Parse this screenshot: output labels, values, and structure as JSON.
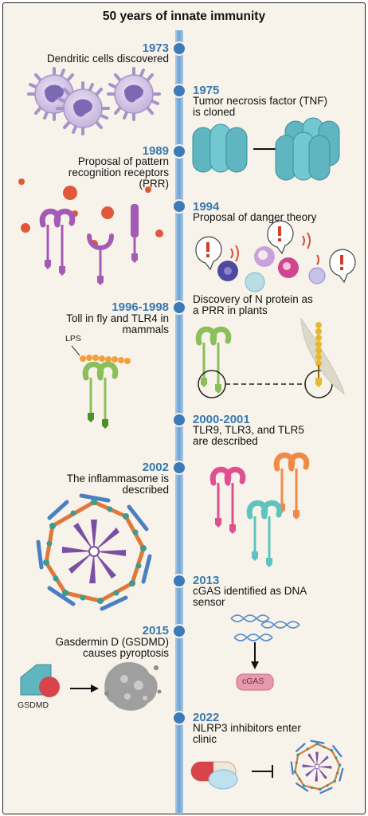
{
  "title": "50 years of innate immunity",
  "events": [
    {
      "year": "1973",
      "text": "Dendritic cells discovered"
    },
    {
      "year": "1975",
      "text": "Tumor necrosis factor (TNF)\nis cloned"
    },
    {
      "year": "1989",
      "text": "Proposal of pattern\nrecognition receptors\n(PRR)"
    },
    {
      "year": "1994",
      "text": "Proposal of danger theory"
    },
    {
      "year": "1996-1998",
      "text": "Toll in fly and TLR4 in\nmammals"
    },
    {
      "year": "",
      "text": "Discovery of N protein as\na PRR in plants"
    },
    {
      "year": "2000-2001",
      "text": "TLR9, TLR3, and TLR5\nare described"
    },
    {
      "year": "2002",
      "text": "The inflammasome is\ndescribed"
    },
    {
      "year": "2013",
      "text": "cGAS identified as DNA\nsensor"
    },
    {
      "year": "2015",
      "text": "Gasdermin D (GSDMD)\ncauses pyroptosis"
    },
    {
      "year": "2022",
      "text": "NLRP3 inhibitors enter\nclinic"
    }
  ],
  "labels": {
    "lps": "LPS",
    "gsdmd": "GSDMD",
    "cgas": "cGAS"
  }
}
